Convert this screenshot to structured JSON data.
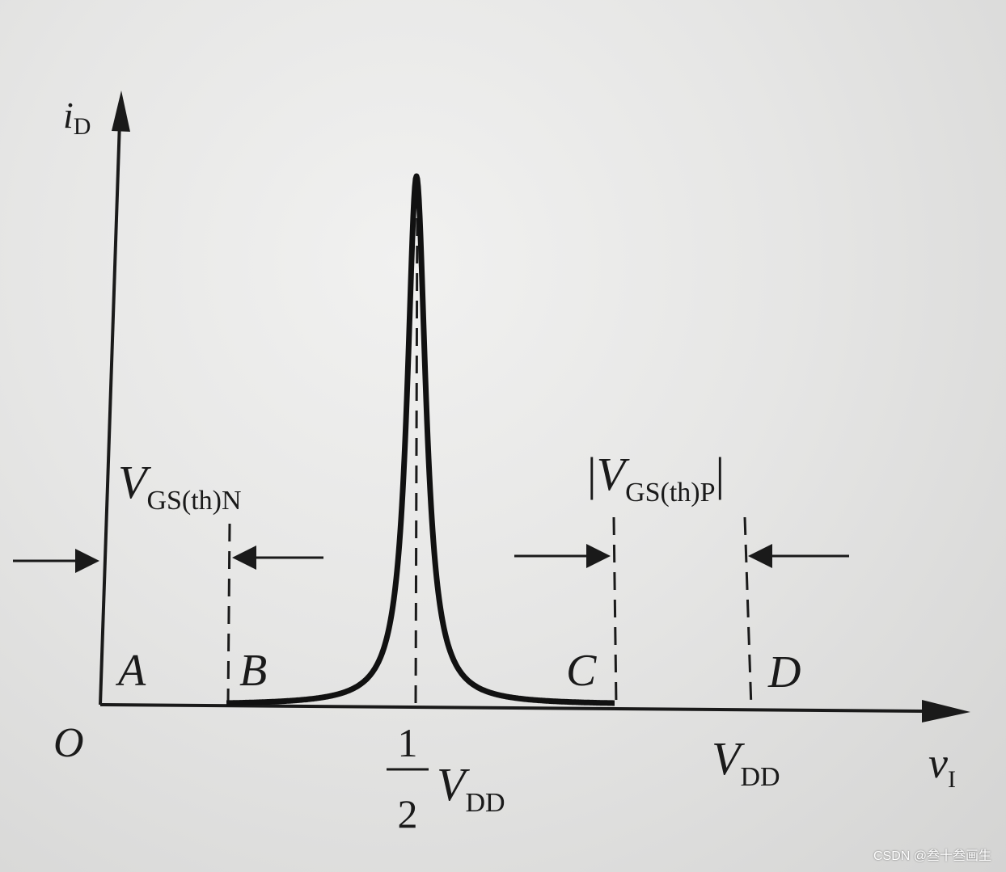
{
  "chart_data": {
    "type": "line",
    "description_free": true,
    "x_axis": {
      "label_main": "v",
      "label_sub": "I"
    },
    "y_axis": {
      "label_main": "i",
      "label_sub": "D"
    },
    "origin_label": "O",
    "x_ticks": [
      {
        "id": "half",
        "numerator": "1",
        "denominator": "2",
        "main": "V",
        "sub": "DD"
      },
      {
        "id": "vdd",
        "main": "V",
        "sub": "DD"
      }
    ],
    "region_labels": [
      "A",
      "B",
      "C",
      "D"
    ],
    "threshold_labels": {
      "n": {
        "main": "V",
        "sub": "GS(th)N"
      },
      "p": {
        "prefix": "|",
        "main": "V",
        "sub": "GS(th)P",
        "suffix": "|"
      }
    }
  },
  "watermark": "CSDN @叁十叁画生"
}
